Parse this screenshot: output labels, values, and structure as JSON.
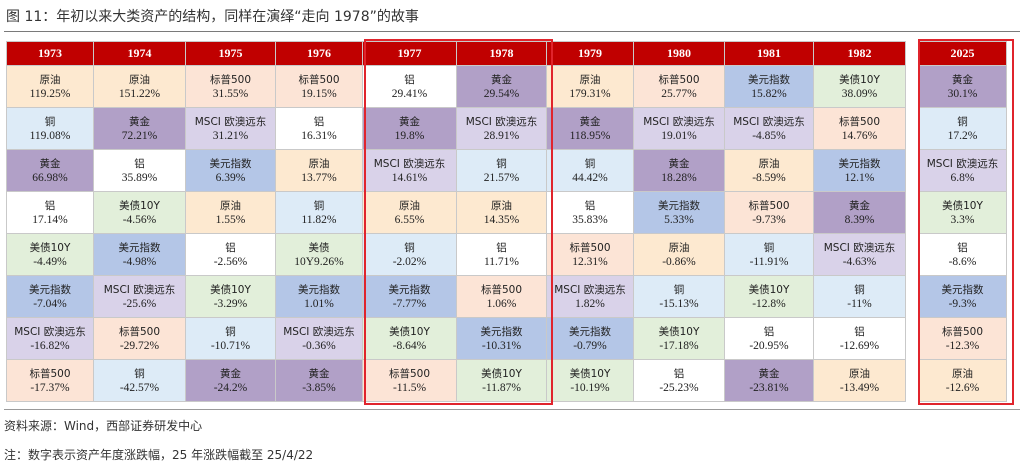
{
  "title": "图 11：年初以来大类资产的结构，同样在演绎“走向 1978”的故事",
  "asset_colors": {
    "原油": "#fde9d0",
    "黄金": "#b1a0c7",
    "标普500": "#fce4d6",
    "美元指数": "#b4c6e7",
    "MSCI 欧澳远东": "#d9d2e9",
    "铜": "#ddebf7",
    "铝": "#ffffff",
    "美债10Y": "#e2efda"
  },
  "highlight_color": "#e0242c",
  "years": [
    "1973",
    "1974",
    "1975",
    "1976",
    "1977",
    "1978",
    "1979",
    "1980",
    "1981",
    "1982",
    "2025"
  ],
  "columns": [
    [
      [
        "原油",
        "119.25%"
      ],
      [
        "铜",
        "119.08%"
      ],
      [
        "黄金",
        "66.98%"
      ],
      [
        "铝",
        "17.14%"
      ],
      [
        "美债10Y",
        "-4.49%"
      ],
      [
        "美元指数",
        "-7.04%"
      ],
      [
        "MSCI 欧澳远东",
        "-16.82%"
      ],
      [
        "标普500",
        "-17.37%"
      ]
    ],
    [
      [
        "原油",
        "151.22%"
      ],
      [
        "黄金",
        "72.21%"
      ],
      [
        "铝",
        "35.89%"
      ],
      [
        "美债10Y",
        "-4.56%"
      ],
      [
        "美元指数",
        "-4.98%"
      ],
      [
        "MSCI 欧澳远东",
        "-25.6%"
      ],
      [
        "标普500",
        "-29.72%"
      ],
      [
        "铜",
        "-42.57%"
      ]
    ],
    [
      [
        "标普500",
        "31.55%"
      ],
      [
        "MSCI 欧澳远东",
        "31.21%"
      ],
      [
        "美元指数",
        "6.39%"
      ],
      [
        "原油",
        "1.55%"
      ],
      [
        "铝",
        "-2.56%"
      ],
      [
        "美债10Y",
        "-3.29%"
      ],
      [
        "铜",
        "-10.71%"
      ],
      [
        "黄金",
        "-24.2%"
      ]
    ],
    [
      [
        "标普500",
        "19.15%"
      ],
      [
        "铝",
        "16.31%"
      ],
      [
        "原油",
        "13.77%"
      ],
      [
        "铜",
        "11.82%"
      ],
      [
        "美债",
        "10Y9.26%"
      ],
      [
        "美元指数",
        "1.01%"
      ],
      [
        "MSCI 欧澳远东",
        "-0.36%"
      ],
      [
        "黄金",
        "-3.85%"
      ]
    ],
    [
      [
        "铝",
        "29.41%"
      ],
      [
        "黄金",
        "19.8%"
      ],
      [
        "MSCI 欧澳远东",
        "14.61%"
      ],
      [
        "原油",
        "6.55%"
      ],
      [
        "铜",
        "-2.02%"
      ],
      [
        "美元指数",
        "-7.77%"
      ],
      [
        "美债10Y",
        "-8.64%"
      ],
      [
        "标普500",
        "-11.5%"
      ]
    ],
    [
      [
        "黄金",
        "29.54%"
      ],
      [
        "MSCI 欧澳远东",
        "28.91%"
      ],
      [
        "铜",
        "21.57%"
      ],
      [
        "原油",
        "14.35%"
      ],
      [
        "铝",
        "11.71%"
      ],
      [
        "标普500",
        "1.06%"
      ],
      [
        "美元指数",
        "-10.31%"
      ],
      [
        "美债10Y",
        "-11.87%"
      ]
    ],
    [
      [
        "原油",
        "179.31%"
      ],
      [
        "黄金",
        "118.95%"
      ],
      [
        "铜",
        "44.42%"
      ],
      [
        "铝",
        "35.83%"
      ],
      [
        "标普500",
        "12.31%"
      ],
      [
        "MSCI 欧澳远东",
        "1.82%"
      ],
      [
        "美元指数",
        "-0.79%"
      ],
      [
        "美债10Y",
        "-10.19%"
      ]
    ],
    [
      [
        "标普500",
        "25.77%"
      ],
      [
        "MSCI 欧澳远东",
        "19.01%"
      ],
      [
        "黄金",
        "18.28%"
      ],
      [
        "美元指数",
        "5.33%"
      ],
      [
        "原油",
        "-0.86%"
      ],
      [
        "铜",
        "-15.13%"
      ],
      [
        "美债10Y",
        "-17.18%"
      ],
      [
        "铝",
        "-25.23%"
      ]
    ],
    [
      [
        "美元指数",
        "15.82%"
      ],
      [
        "MSCI 欧澳远东",
        "-4.85%"
      ],
      [
        "原油",
        "-8.59%"
      ],
      [
        "标普500",
        "-9.73%"
      ],
      [
        "铜",
        "-11.91%"
      ],
      [
        "美债10Y",
        "-12.8%"
      ],
      [
        "铝",
        "-20.95%"
      ],
      [
        "黄金",
        "-23.81%"
      ]
    ],
    [
      [
        "美债10Y",
        "38.09%"
      ],
      [
        "标普500",
        "14.76%"
      ],
      [
        "美元指数",
        "12.1%"
      ],
      [
        "黄金",
        "8.39%"
      ],
      [
        "MSCI 欧澳远东",
        "-4.63%"
      ],
      [
        "铜",
        "-11%"
      ],
      [
        "铝",
        "-12.69%"
      ],
      [
        "原油",
        "-13.49%"
      ]
    ],
    [
      [
        "黄金",
        "30.1%"
      ],
      [
        "铜",
        "17.2%"
      ],
      [
        "MSCI 欧澳远东",
        "6.8%"
      ],
      [
        "美债10Y",
        "3.3%"
      ],
      [
        "铝",
        "-8.6%"
      ],
      [
        "美元指数",
        "-9.3%"
      ],
      [
        "标普500",
        "-12.3%"
      ],
      [
        "原油",
        "-12.6%"
      ]
    ]
  ],
  "notes": {
    "source": "资料来源：Wind，西部证券研发中心",
    "footnote": "注：数字表示资产年度涨跌幅，25 年涨跌幅截至 25/4/22"
  }
}
